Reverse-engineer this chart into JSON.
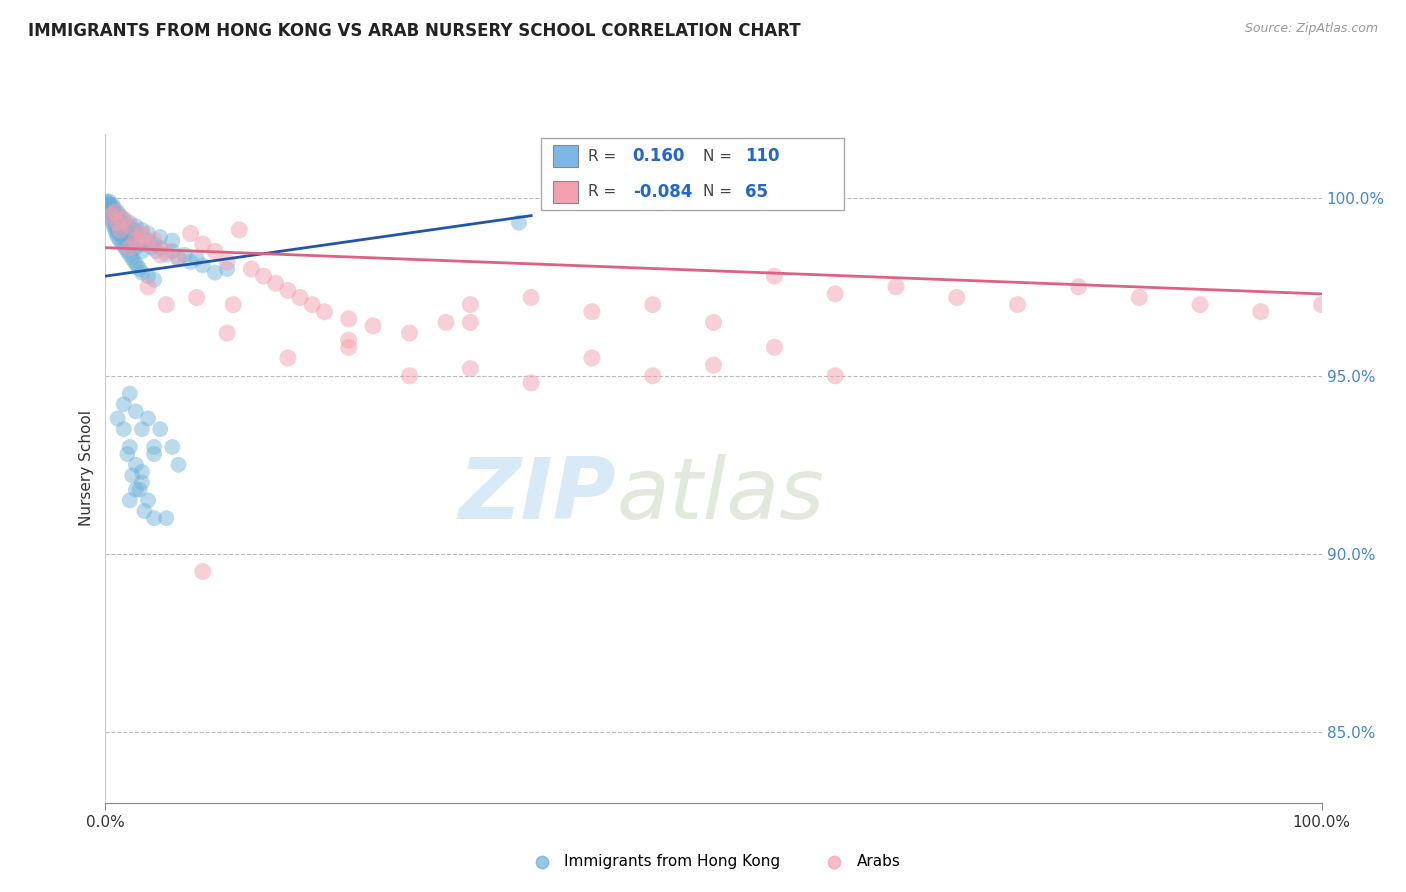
{
  "title": "IMMIGRANTS FROM HONG KONG VS ARAB NURSERY SCHOOL CORRELATION CHART",
  "source": "Source: ZipAtlas.com",
  "ylabel": "Nursery School",
  "right_yticks": [
    85.0,
    90.0,
    95.0,
    100.0
  ],
  "legend_entries": [
    {
      "label": "Immigrants from Hong Kong",
      "R": 0.16,
      "N": 110,
      "color": "#7EB6E8"
    },
    {
      "label": "Arabs",
      "R": -0.084,
      "N": 65,
      "color": "#F4A0B0"
    }
  ],
  "blue_color": "#6aaed6",
  "pink_color": "#f4a0b0",
  "blue_line_color": "#2255aa",
  "pink_line_color": "#e06080",
  "ylim_min": 83.0,
  "ylim_max": 101.8,
  "xlim_min": 0,
  "xlim_max": 100,
  "blue_dots": [
    [
      0.1,
      99.9
    ],
    [
      0.15,
      99.85
    ],
    [
      0.2,
      99.8
    ],
    [
      0.25,
      99.75
    ],
    [
      0.3,
      99.9
    ],
    [
      0.35,
      99.7
    ],
    [
      0.4,
      99.8
    ],
    [
      0.45,
      99.65
    ],
    [
      0.5,
      99.7
    ],
    [
      0.5,
      99.6
    ],
    [
      0.6,
      99.8
    ],
    [
      0.6,
      99.6
    ],
    [
      0.65,
      99.5
    ],
    [
      0.7,
      99.7
    ],
    [
      0.7,
      99.5
    ],
    [
      0.8,
      99.6
    ],
    [
      0.8,
      99.4
    ],
    [
      0.85,
      99.3
    ],
    [
      0.9,
      99.5
    ],
    [
      0.9,
      99.2
    ],
    [
      1.0,
      99.4
    ],
    [
      1.0,
      99.1
    ],
    [
      1.1,
      99.3
    ],
    [
      1.1,
      99.0
    ],
    [
      1.2,
      99.2
    ],
    [
      1.2,
      99.5
    ],
    [
      1.3,
      99.1
    ],
    [
      1.4,
      99.3
    ],
    [
      1.5,
      99.2
    ],
    [
      1.5,
      98.9
    ],
    [
      1.6,
      99.1
    ],
    [
      1.7,
      99.0
    ],
    [
      1.8,
      98.8
    ],
    [
      1.9,
      99.2
    ],
    [
      2.0,
      99.0
    ],
    [
      2.0,
      98.7
    ],
    [
      2.1,
      98.9
    ],
    [
      2.2,
      98.8
    ],
    [
      2.3,
      99.1
    ],
    [
      2.5,
      99.0
    ],
    [
      2.5,
      98.6
    ],
    [
      2.7,
      98.8
    ],
    [
      2.8,
      98.7
    ],
    [
      3.0,
      98.9
    ],
    [
      3.0,
      98.5
    ],
    [
      3.2,
      98.7
    ],
    [
      3.5,
      98.8
    ],
    [
      3.8,
      98.6
    ],
    [
      4.0,
      98.7
    ],
    [
      4.2,
      98.5
    ],
    [
      4.5,
      98.6
    ],
    [
      5.0,
      98.4
    ],
    [
      5.5,
      98.5
    ],
    [
      6.0,
      98.3
    ],
    [
      6.5,
      98.4
    ],
    [
      7.0,
      98.2
    ],
    [
      7.5,
      98.3
    ],
    [
      8.0,
      98.1
    ],
    [
      9.0,
      97.9
    ],
    [
      10.0,
      98.0
    ],
    [
      0.3,
      99.6
    ],
    [
      0.4,
      99.5
    ],
    [
      0.5,
      99.4
    ],
    [
      0.6,
      99.3
    ],
    [
      0.7,
      99.2
    ],
    [
      0.8,
      99.1
    ],
    [
      0.9,
      99.0
    ],
    [
      1.0,
      98.9
    ],
    [
      1.2,
      98.8
    ],
    [
      1.4,
      98.7
    ],
    [
      1.6,
      98.6
    ],
    [
      1.8,
      98.5
    ],
    [
      2.0,
      98.4
    ],
    [
      2.2,
      98.3
    ],
    [
      2.4,
      98.2
    ],
    [
      2.6,
      98.1
    ],
    [
      2.8,
      98.0
    ],
    [
      3.0,
      97.9
    ],
    [
      3.5,
      97.8
    ],
    [
      4.0,
      97.7
    ],
    [
      0.2,
      99.7
    ],
    [
      0.3,
      99.8
    ],
    [
      0.5,
      99.6
    ],
    [
      0.7,
      99.5
    ],
    [
      1.0,
      99.6
    ],
    [
      1.5,
      99.4
    ],
    [
      2.0,
      99.3
    ],
    [
      2.5,
      99.2
    ],
    [
      3.0,
      99.1
    ],
    [
      3.5,
      99.0
    ],
    [
      4.5,
      98.9
    ],
    [
      5.5,
      98.8
    ],
    [
      34.0,
      99.3
    ],
    [
      1.5,
      93.5
    ],
    [
      2.0,
      93.0
    ],
    [
      2.5,
      92.5
    ],
    [
      3.0,
      92.0
    ],
    [
      3.5,
      91.5
    ],
    [
      4.0,
      91.0
    ],
    [
      1.8,
      92.8
    ],
    [
      2.2,
      92.2
    ],
    [
      2.8,
      91.8
    ],
    [
      3.2,
      91.2
    ],
    [
      1.0,
      93.8
    ],
    [
      1.5,
      94.2
    ],
    [
      2.0,
      94.5
    ],
    [
      3.0,
      93.5
    ],
    [
      4.0,
      93.0
    ],
    [
      2.5,
      94.0
    ],
    [
      3.5,
      93.8
    ],
    [
      4.5,
      93.5
    ],
    [
      5.5,
      93.0
    ],
    [
      6.0,
      92.5
    ],
    [
      2.0,
      91.5
    ],
    [
      2.5,
      91.8
    ],
    [
      3.0,
      92.3
    ],
    [
      4.0,
      92.8
    ],
    [
      5.0,
      91.0
    ]
  ],
  "pink_dots": [
    [
      0.5,
      99.5
    ],
    [
      1.0,
      99.3
    ],
    [
      1.5,
      99.4
    ],
    [
      2.0,
      99.2
    ],
    [
      2.5,
      98.8
    ],
    [
      3.0,
      98.9
    ],
    [
      3.5,
      98.7
    ],
    [
      4.0,
      98.8
    ],
    [
      5.0,
      98.5
    ],
    [
      6.0,
      98.3
    ],
    [
      0.8,
      99.6
    ],
    [
      1.2,
      99.1
    ],
    [
      2.0,
      98.6
    ],
    [
      3.0,
      99.0
    ],
    [
      4.5,
      98.4
    ],
    [
      7.0,
      99.0
    ],
    [
      8.0,
      98.7
    ],
    [
      9.0,
      98.5
    ],
    [
      10.0,
      98.2
    ],
    [
      11.0,
      99.1
    ],
    [
      12.0,
      98.0
    ],
    [
      13.0,
      97.8
    ],
    [
      14.0,
      97.6
    ],
    [
      15.0,
      97.4
    ],
    [
      16.0,
      97.2
    ],
    [
      17.0,
      97.0
    ],
    [
      18.0,
      96.8
    ],
    [
      20.0,
      96.6
    ],
    [
      22.0,
      96.4
    ],
    [
      25.0,
      96.2
    ],
    [
      28.0,
      96.5
    ],
    [
      30.0,
      97.0
    ],
    [
      35.0,
      97.2
    ],
    [
      40.0,
      96.8
    ],
    [
      45.0,
      97.0
    ],
    [
      50.0,
      96.5
    ],
    [
      55.0,
      97.8
    ],
    [
      60.0,
      97.3
    ],
    [
      65.0,
      97.5
    ],
    [
      70.0,
      97.2
    ],
    [
      75.0,
      97.0
    ],
    [
      80.0,
      97.5
    ],
    [
      85.0,
      97.2
    ],
    [
      90.0,
      97.0
    ],
    [
      95.0,
      96.8
    ],
    [
      100.0,
      97.0
    ],
    [
      3.5,
      97.5
    ],
    [
      5.0,
      97.0
    ],
    [
      7.5,
      97.2
    ],
    [
      10.5,
      97.0
    ],
    [
      15.0,
      95.5
    ],
    [
      20.0,
      95.8
    ],
    [
      25.0,
      95.0
    ],
    [
      30.0,
      95.2
    ],
    [
      35.0,
      94.8
    ],
    [
      40.0,
      95.5
    ],
    [
      45.0,
      95.0
    ],
    [
      50.0,
      95.3
    ],
    [
      55.0,
      95.8
    ],
    [
      60.0,
      95.0
    ],
    [
      10.0,
      96.2
    ],
    [
      20.0,
      96.0
    ],
    [
      30.0,
      96.5
    ],
    [
      8.0,
      89.5
    ]
  ]
}
